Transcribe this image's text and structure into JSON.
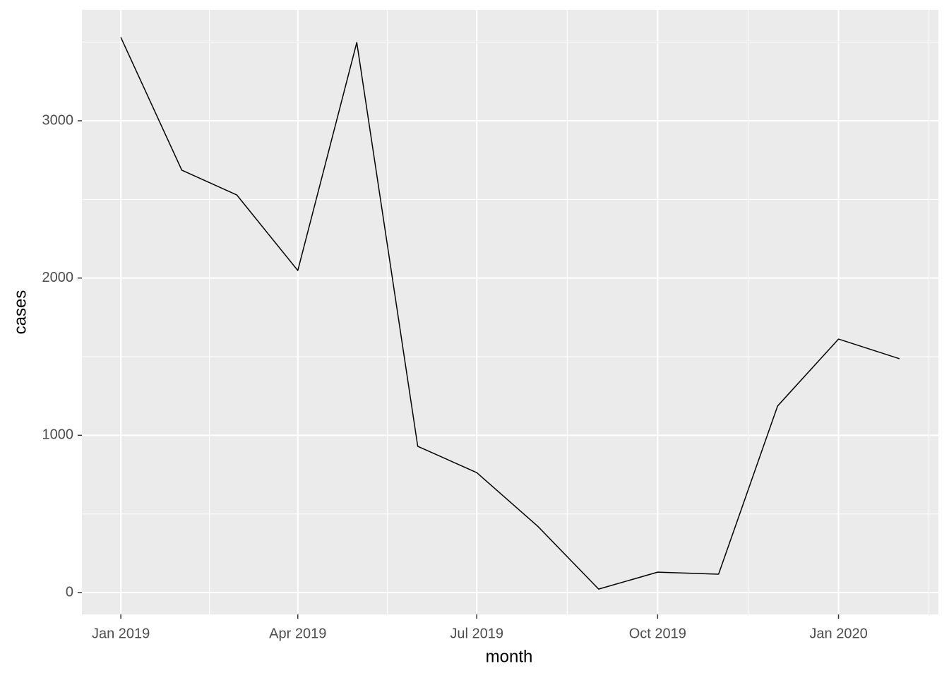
{
  "chart_data": {
    "type": "line",
    "x": [
      "2019-01",
      "2019-02",
      "2019-03",
      "2019-04",
      "2019-05",
      "2019-06",
      "2019-07",
      "2019-08",
      "2019-09",
      "2019-10",
      "2019-11",
      "2019-12",
      "2020-01",
      "2020-02"
    ],
    "series": [
      {
        "color": "#000000",
        "values": [
          3530,
          2686,
          2528,
          2048,
          3498,
          930,
          763,
          422,
          22,
          130,
          117,
          1186,
          1612,
          1487
        ]
      }
    ],
    "x_label": "month",
    "y_label": "cases",
    "xticks": [
      {
        "value": "2019-01",
        "label": "Jan 2019"
      },
      {
        "value": "2019-04",
        "label": "Apr 2019"
      },
      {
        "value": "2019-07",
        "label": "Jul 2019"
      },
      {
        "value": "2019-10",
        "label": "Oct 2019"
      },
      {
        "value": "2020-01",
        "label": "Jan 2020"
      }
    ],
    "ylim": [
      -139,
      3705
    ],
    "yticks": [
      0,
      1000,
      2000,
      3000
    ],
    "grid": true
  }
}
